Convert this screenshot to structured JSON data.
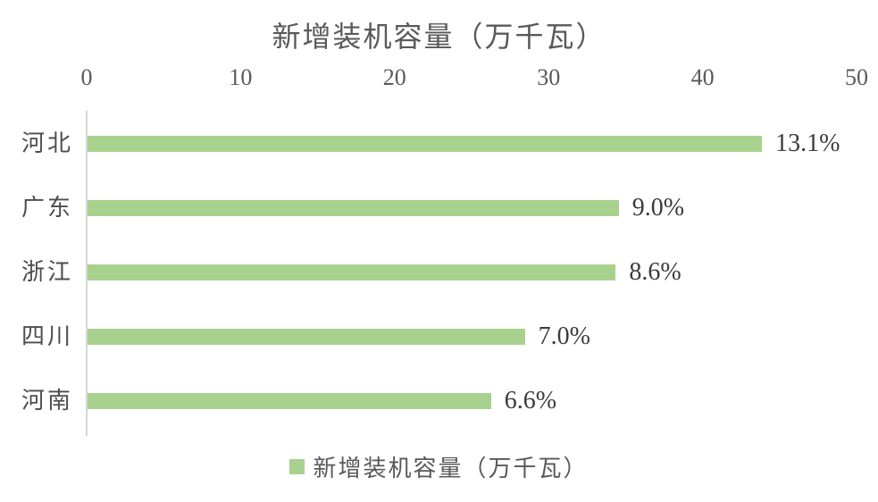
{
  "colors": {
    "background": "#ffffff",
    "bar": "#a9d18e",
    "axis_line": "#d6d6d6",
    "title_text": "#595959",
    "tick_text": "#595959",
    "category_text": "#4d4d4d",
    "data_label_text": "#3b3b3b",
    "legend_text": "#595959"
  },
  "chart_data": {
    "type": "bar",
    "orientation": "horizontal",
    "title": "新增装机容量（万千瓦）",
    "categories": [
      "河北",
      "广东",
      "浙江",
      "四川",
      "河南"
    ],
    "values": [
      43.8,
      34.5,
      34.3,
      28.4,
      26.2
    ],
    "data_labels": [
      "13.1%",
      "9.0%",
      "8.6%",
      "7.0%",
      "6.6%"
    ],
    "x_ticks": [
      0,
      10,
      20,
      30,
      40,
      50
    ],
    "xlim": [
      0,
      50
    ],
    "xlabel": "",
    "ylabel": "",
    "grid": false,
    "axis_position": "top",
    "legend": [
      "新增装机容量（万千瓦）"
    ],
    "legend_position": "bottom"
  }
}
